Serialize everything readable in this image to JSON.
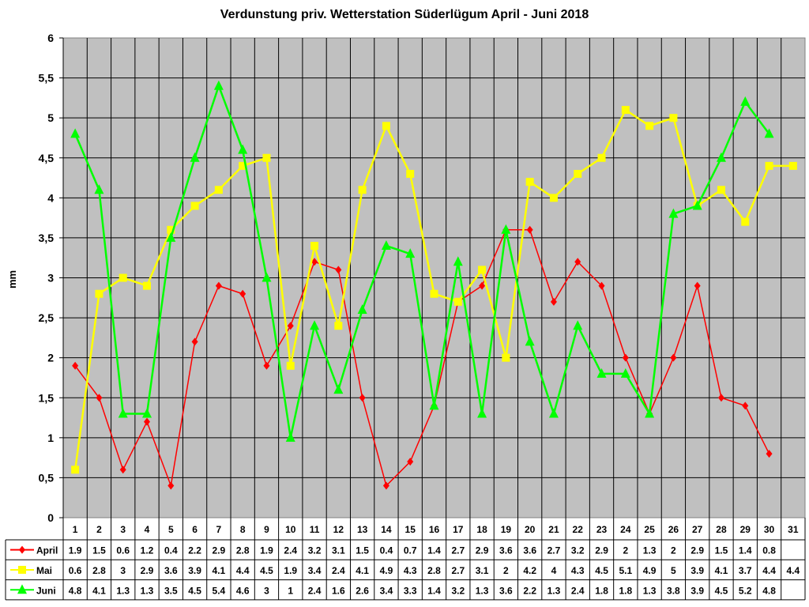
{
  "chart_data": {
    "type": "line",
    "title": "Verdunstung priv. Wetterstation Süderlügum April - Juni 2018",
    "xlabel": "",
    "ylabel": "mm",
    "ylim": [
      0,
      6
    ],
    "yticks": [
      "0",
      "0,5",
      "1",
      "1,5",
      "2",
      "2,5",
      "3",
      "3,5",
      "4",
      "4,5",
      "5",
      "5,5",
      "6"
    ],
    "grid": true,
    "legend_position": "data-table",
    "categories": [
      "1",
      "2",
      "3",
      "4",
      "5",
      "6",
      "7",
      "8",
      "9",
      "10",
      "11",
      "12",
      "13",
      "14",
      "15",
      "16",
      "17",
      "18",
      "19",
      "20",
      "21",
      "22",
      "23",
      "24",
      "25",
      "26",
      "27",
      "28",
      "29",
      "30",
      "31"
    ],
    "series": [
      {
        "name": "April",
        "color": "#ff0000",
        "marker": "diamond",
        "values": [
          1.9,
          1.5,
          0.6,
          1.2,
          0.4,
          2.2,
          2.9,
          2.8,
          1.9,
          2.4,
          3.2,
          3.1,
          1.5,
          0.4,
          0.7,
          1.4,
          2.7,
          2.9,
          3.6,
          3.6,
          2.7,
          3.2,
          2.9,
          2,
          1.3,
          2,
          2.9,
          1.5,
          1.4,
          0.8,
          null
        ]
      },
      {
        "name": "Mai",
        "color": "#ffff00",
        "marker": "square",
        "values": [
          0.6,
          2.8,
          3,
          2.9,
          3.6,
          3.9,
          4.1,
          4.4,
          4.5,
          1.9,
          3.4,
          2.4,
          4.1,
          4.9,
          4.3,
          2.8,
          2.7,
          3.1,
          2,
          4.2,
          4,
          4.3,
          4.5,
          5.1,
          4.9,
          5,
          3.9,
          4.1,
          3.7,
          4.4,
          4.4
        ]
      },
      {
        "name": "Juni",
        "color": "#00ff00",
        "marker": "triangle",
        "values": [
          4.8,
          4.1,
          1.3,
          1.3,
          3.5,
          4.5,
          5.4,
          4.6,
          3,
          1,
          2.4,
          1.6,
          2.6,
          3.4,
          3.3,
          1.4,
          3.2,
          1.3,
          3.6,
          2.2,
          1.3,
          2.4,
          1.8,
          1.8,
          1.3,
          3.8,
          3.9,
          4.5,
          5.2,
          4.8,
          null
        ]
      }
    ]
  },
  "labels": {
    "title": "Verdunstung priv. Wetterstation Süderlügum April - Juni 2018",
    "ylabel": "mm"
  },
  "colors": {
    "plot_background": "#c0c0c0",
    "gridline": "#000000"
  }
}
